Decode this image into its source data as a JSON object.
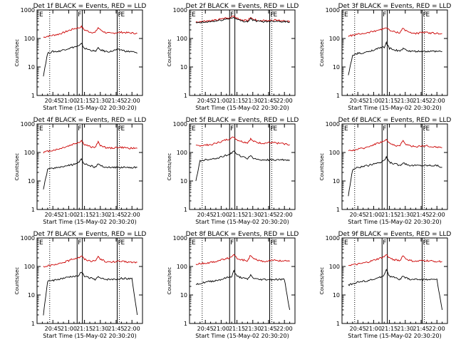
{
  "page": {
    "xlabel_template": "Start Time ({start})",
    "start": "15-May-02 20:30:20",
    "ylabel": "Counts/sec"
  },
  "colors": {
    "events": "#000000",
    "lld": "#cc0000",
    "axis": "#000000"
  },
  "chart_data": [
    {
      "type": "line",
      "title": "Det 1f BLACK = Events, RED = LLD",
      "xlabel": "Start Time (15-May-02 20:30:20)",
      "ylabel": "Counts/sec",
      "ylog": true,
      "ylim": [
        1,
        1000
      ],
      "yticks": [
        "1",
        "10",
        "100",
        "1000"
      ],
      "xticks": [
        "20:45",
        "21:00",
        "21:15",
        "21:30",
        "21:45",
        "22:00"
      ],
      "xlim": [
        "20:30",
        "22:10"
      ],
      "x": [
        "20:36",
        "20:40",
        "20:45",
        "20:50",
        "20:55",
        "21:00",
        "21:05",
        "21:10",
        "21:12",
        "21:15",
        "21:20",
        "21:25",
        "21:28",
        "21:30",
        "21:35",
        "21:40",
        "21:45",
        "21:50",
        "21:55",
        "22:00",
        "22:05"
      ],
      "series": [
        {
          "values": [
            110,
            120,
            130,
            140,
            160,
            190,
            220,
            240,
            260,
            200,
            170,
            160,
            240,
            200,
            160,
            150,
            160,
            165,
            160,
            155,
            150
          ]
        },
        {
          "values": [
            5,
            30,
            35,
            35,
            40,
            45,
            50,
            55,
            65,
            45,
            40,
            35,
            45,
            40,
            35,
            35,
            40,
            40,
            35,
            35,
            30
          ]
        }
      ],
      "vlines_solid": [
        "21:08",
        "21:13",
        "21:46"
      ],
      "vlines_dotted": [
        "20:42",
        "21:48"
      ],
      "markers": [
        "E",
        "F",
        "F",
        "E"
      ]
    },
    {
      "type": "line",
      "title": "Det 2f BLACK = Events, RED = LLD",
      "xlabel": "Start Time (15-May-02 20:30:20)",
      "ylabel": "Counts/sec",
      "ylog": true,
      "ylim": [
        1,
        1000
      ],
      "yticks": [
        "1",
        "10",
        "100",
        "1000"
      ],
      "xticks": [
        "20:45",
        "21:00",
        "21:15",
        "21:30",
        "21:45",
        "22:00"
      ],
      "xlim": [
        "20:30",
        "22:10"
      ],
      "x": [
        "20:36",
        "20:40",
        "20:45",
        "20:50",
        "20:55",
        "21:00",
        "21:05",
        "21:10",
        "21:12",
        "21:15",
        "21:20",
        "21:25",
        "21:28",
        "21:30",
        "21:35",
        "21:40",
        "21:45",
        "21:50",
        "21:55",
        "22:00",
        "22:05"
      ],
      "series": [
        {
          "values": [
            380,
            390,
            400,
            420,
            440,
            480,
            520,
            560,
            620,
            500,
            450,
            420,
            560,
            480,
            430,
            420,
            430,
            440,
            430,
            420,
            410
          ]
        },
        {
          "values": [
            350,
            360,
            370,
            390,
            410,
            440,
            480,
            520,
            560,
            460,
            410,
            390,
            500,
            440,
            400,
            390,
            400,
            410,
            400,
            390,
            380
          ]
        }
      ],
      "vlines_solid": [
        "21:08",
        "21:13",
        "21:46"
      ],
      "vlines_dotted": [
        "20:42",
        "21:48"
      ],
      "markers": [
        "E",
        "F",
        "F",
        "E"
      ]
    },
    {
      "type": "line",
      "title": "Det 3f BLACK = Events, RED = LLD",
      "xlabel": "Start Time (15-May-02 20:30:20)",
      "ylabel": "Counts/sec",
      "ylog": true,
      "ylim": [
        1,
        1000
      ],
      "yticks": [
        "1",
        "10",
        "100",
        "1000"
      ],
      "xticks": [
        "20:45",
        "21:00",
        "21:15",
        "21:30",
        "21:45",
        "22:00"
      ],
      "xlim": [
        "20:30",
        "22:10"
      ],
      "x": [
        "20:36",
        "20:40",
        "20:45",
        "20:50",
        "20:55",
        "21:00",
        "21:05",
        "21:10",
        "21:12",
        "21:15",
        "21:20",
        "21:25",
        "21:28",
        "21:30",
        "21:35",
        "21:40",
        "21:45",
        "21:50",
        "21:55",
        "22:00",
        "22:05"
      ],
      "series": [
        {
          "values": [
            120,
            130,
            140,
            150,
            160,
            180,
            200,
            220,
            250,
            190,
            170,
            160,
            240,
            190,
            160,
            150,
            160,
            160,
            155,
            150,
            150
          ]
        },
        {
          "values": [
            5,
            25,
            30,
            30,
            35,
            40,
            45,
            50,
            70,
            45,
            40,
            35,
            45,
            40,
            35,
            35,
            35,
            35,
            35,
            35,
            35
          ]
        }
      ],
      "vlines_solid": [
        "21:08",
        "21:13",
        "21:46"
      ],
      "vlines_dotted": [
        "20:42",
        "21:48"
      ],
      "markers": [
        "E",
        "F",
        "F",
        "E"
      ]
    },
    {
      "type": "line",
      "title": "Det 4f BLACK = Events, RED = LLD",
      "xlabel": "Start Time (15-May-02 20:30:20)",
      "ylabel": "Counts/sec",
      "ylog": true,
      "ylim": [
        1,
        1000
      ],
      "yticks": [
        "1",
        "10",
        "100",
        "1000"
      ],
      "xticks": [
        "20:45",
        "21:00",
        "21:15",
        "21:30",
        "21:45",
        "22:00"
      ],
      "xlim": [
        "20:30",
        "22:10"
      ],
      "x": [
        "20:36",
        "20:40",
        "20:45",
        "20:50",
        "20:55",
        "21:00",
        "21:05",
        "21:10",
        "21:12",
        "21:15",
        "21:20",
        "21:25",
        "21:28",
        "21:30",
        "21:35",
        "21:40",
        "21:45",
        "21:50",
        "21:55",
        "22:00",
        "22:05"
      ],
      "series": [
        {
          "values": [
            100,
            110,
            120,
            130,
            150,
            170,
            200,
            230,
            260,
            190,
            160,
            150,
            230,
            180,
            150,
            140,
            150,
            150,
            145,
            140,
            140
          ]
        },
        {
          "values": [
            5,
            25,
            28,
            30,
            32,
            35,
            38,
            45,
            60,
            40,
            35,
            30,
            40,
            35,
            30,
            30,
            30,
            30,
            30,
            30,
            30
          ]
        }
      ],
      "vlines_solid": [
        "21:08",
        "21:13",
        "21:46"
      ],
      "vlines_dotted": [
        "20:42",
        "21:48"
      ],
      "markers": [
        "E",
        "F",
        "F",
        "E"
      ]
    },
    {
      "type": "line",
      "title": "Det 5f BLACK = Events, RED = LLD",
      "xlabel": "Start Time (15-May-02 20:30:20)",
      "ylabel": "Counts/sec",
      "ylog": true,
      "ylim": [
        1,
        1000
      ],
      "yticks": [
        "1",
        "10",
        "100",
        "1000"
      ],
      "xticks": [
        "20:45",
        "21:00",
        "21:15",
        "21:30",
        "21:45",
        "22:00"
      ],
      "xlim": [
        "20:30",
        "22:10"
      ],
      "x": [
        "20:36",
        "20:40",
        "20:45",
        "20:50",
        "20:55",
        "21:00",
        "21:05",
        "21:10",
        "21:12",
        "21:15",
        "21:20",
        "21:25",
        "21:28",
        "21:30",
        "21:35",
        "21:40",
        "21:45",
        "21:50",
        "21:55",
        "22:00",
        "22:05"
      ],
      "series": [
        {
          "values": [
            170,
            175,
            180,
            190,
            210,
            240,
            280,
            320,
            350,
            280,
            240,
            220,
            300,
            250,
            220,
            210,
            220,
            220,
            210,
            200,
            190
          ]
        },
        {
          "values": [
            10,
            50,
            55,
            58,
            62,
            70,
            80,
            95,
            120,
            85,
            70,
            60,
            80,
            65,
            55,
            55,
            55,
            55,
            55,
            55,
            55
          ]
        }
      ],
      "vlines_solid": [
        "21:08",
        "21:13",
        "21:46"
      ],
      "vlines_dotted": [
        "20:42",
        "21:48"
      ],
      "markers": [
        "E",
        "F",
        "F",
        "E"
      ]
    },
    {
      "type": "line",
      "title": "Det 6f BLACK = Events, RED = LLD",
      "xlabel": "Start Time (15-May-02 20:30:20)",
      "ylabel": "Counts/sec",
      "ylog": true,
      "ylim": [
        1,
        1000
      ],
      "yticks": [
        "1",
        "10",
        "100",
        "1000"
      ],
      "xticks": [
        "20:45",
        "21:00",
        "21:15",
        "21:30",
        "21:45",
        "22:00"
      ],
      "xlim": [
        "20:30",
        "22:10"
      ],
      "x": [
        "20:36",
        "20:40",
        "20:45",
        "20:50",
        "20:55",
        "21:00",
        "21:05",
        "21:10",
        "21:12",
        "21:15",
        "21:20",
        "21:25",
        "21:28",
        "21:30",
        "21:35",
        "21:40",
        "21:45",
        "21:50",
        "21:55",
        "22:00",
        "22:05"
      ],
      "series": [
        {
          "values": [
            110,
            120,
            130,
            140,
            160,
            190,
            220,
            250,
            280,
            210,
            180,
            170,
            260,
            200,
            170,
            160,
            170,
            170,
            160,
            155,
            150
          ]
        },
        {
          "values": [
            3,
            25,
            30,
            32,
            35,
            40,
            45,
            50,
            70,
            45,
            40,
            35,
            45,
            40,
            35,
            35,
            35,
            35,
            35,
            35,
            30
          ]
        }
      ],
      "vlines_solid": [
        "21:08",
        "21:13",
        "21:46"
      ],
      "vlines_dotted": [
        "20:42",
        "21:48"
      ],
      "markers": [
        "E",
        "F",
        "F",
        "E"
      ]
    },
    {
      "type": "line",
      "title": "Det 7f BLACK = Events, RED = LLD",
      "xlabel": "Start Time (15-May-02 20:30:20)",
      "ylabel": "Counts/sec",
      "ylog": true,
      "ylim": [
        1,
        1000
      ],
      "yticks": [
        "1",
        "10",
        "100",
        "1000"
      ],
      "xticks": [
        "20:45",
        "21:00",
        "21:15",
        "21:30",
        "21:45",
        "22:00"
      ],
      "xlim": [
        "20:30",
        "22:10"
      ],
      "x": [
        "20:36",
        "20:40",
        "20:45",
        "20:50",
        "20:55",
        "21:00",
        "21:05",
        "21:10",
        "21:12",
        "21:15",
        "21:20",
        "21:25",
        "21:28",
        "21:30",
        "21:35",
        "21:40",
        "21:45",
        "21:50",
        "21:55",
        "22:00",
        "22:05"
      ],
      "series": [
        {
          "values": [
            100,
            105,
            110,
            120,
            140,
            160,
            190,
            210,
            240,
            180,
            160,
            150,
            230,
            180,
            150,
            140,
            150,
            150,
            145,
            140,
            140
          ]
        },
        {
          "values": [
            2,
            30,
            32,
            35,
            38,
            42,
            45,
            50,
            65,
            45,
            40,
            35,
            42,
            38,
            35,
            35,
            35,
            38,
            38,
            38,
            2
          ]
        }
      ],
      "vlines_solid": [
        "21:08",
        "21:13",
        "21:46"
      ],
      "vlines_dotted": [
        "20:42",
        "21:48"
      ],
      "markers": [
        "E",
        "F",
        "F",
        "E"
      ]
    },
    {
      "type": "line",
      "title": "Det 8f BLACK = Events, RED = LLD",
      "xlabel": "Start Time (15-May-02 20:30:20)",
      "ylabel": "Counts/sec",
      "ylog": true,
      "ylim": [
        1,
        1000
      ],
      "yticks": [
        "1",
        "10",
        "100",
        "1000"
      ],
      "xticks": [
        "20:45",
        "21:00",
        "21:15",
        "21:30",
        "21:45",
        "22:00"
      ],
      "xlim": [
        "20:30",
        "22:10"
      ],
      "x": [
        "20:36",
        "20:40",
        "20:45",
        "20:50",
        "20:55",
        "21:00",
        "21:05",
        "21:10",
        "21:12",
        "21:15",
        "21:20",
        "21:25",
        "21:28",
        "21:30",
        "21:35",
        "21:40",
        "21:45",
        "21:50",
        "21:55",
        "22:00",
        "22:05"
      ],
      "series": [
        {
          "values": [
            120,
            125,
            130,
            140,
            150,
            170,
            190,
            210,
            250,
            190,
            170,
            160,
            250,
            190,
            160,
            150,
            160,
            165,
            160,
            155,
            150
          ]
        },
        {
          "values": [
            25,
            25,
            28,
            30,
            32,
            35,
            40,
            45,
            70,
            45,
            40,
            35,
            50,
            40,
            35,
            35,
            35,
            35,
            35,
            35,
            3
          ]
        }
      ],
      "vlines_solid": [
        "21:08",
        "21:13",
        "21:46"
      ],
      "vlines_dotted": [
        "20:42",
        "21:48"
      ],
      "markers": [
        "E",
        "F",
        "F",
        "E"
      ]
    },
    {
      "type": "line",
      "title": "Det 9f BLACK = Events, RED = LLD",
      "xlabel": "Start Time (15-May-02 20:30:20)",
      "ylabel": "Counts/sec",
      "ylog": true,
      "ylim": [
        1,
        1000
      ],
      "yticks": [
        "1",
        "10",
        "100",
        "1000"
      ],
      "xticks": [
        "20:45",
        "21:00",
        "21:15",
        "21:30",
        "21:45",
        "22:00"
      ],
      "xlim": [
        "20:30",
        "22:10"
      ],
      "x": [
        "20:36",
        "20:40",
        "20:45",
        "20:50",
        "20:55",
        "21:00",
        "21:05",
        "21:10",
        "21:12",
        "21:15",
        "21:20",
        "21:25",
        "21:28",
        "21:30",
        "21:35",
        "21:40",
        "21:45",
        "21:50",
        "21:55",
        "22:00",
        "22:05"
      ],
      "series": [
        {
          "values": [
            110,
            115,
            120,
            130,
            145,
            165,
            190,
            220,
            260,
            200,
            170,
            160,
            250,
            190,
            160,
            150,
            160,
            160,
            155,
            150,
            150
          ]
        },
        {
          "values": [
            22,
            25,
            28,
            30,
            32,
            35,
            40,
            50,
            80,
            45,
            40,
            35,
            45,
            40,
            35,
            35,
            35,
            35,
            35,
            35,
            3
          ]
        }
      ],
      "vlines_solid": [
        "21:08",
        "21:13",
        "21:46"
      ],
      "vlines_dotted": [
        "20:42",
        "21:48"
      ],
      "markers": [
        "E",
        "F",
        "F",
        "E"
      ]
    }
  ]
}
